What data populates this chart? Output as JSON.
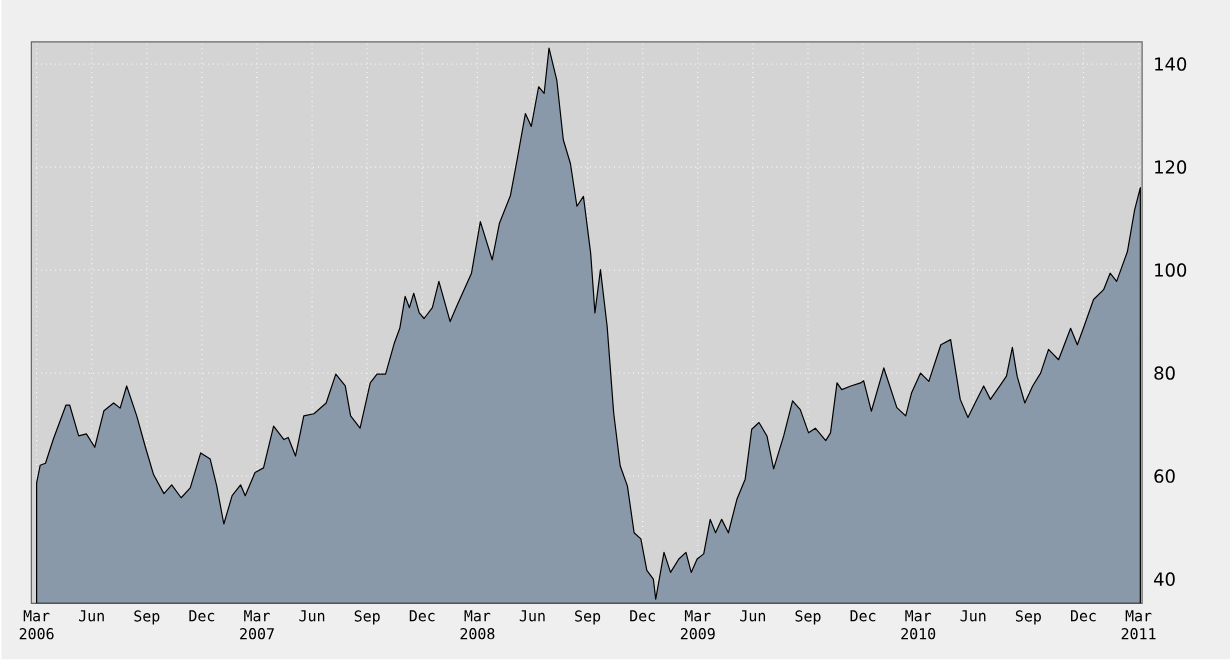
{
  "chart_data": {
    "type": "area",
    "color": "#8a99a9",
    "x": [
      "2006-03-01",
      "2006-03-07",
      "2006-03-16",
      "2006-03-29",
      "2006-04-19",
      "2006-04-25",
      "2006-05-10",
      "2006-05-23",
      "2006-06-06",
      "2006-06-21",
      "2006-07-07",
      "2006-07-18",
      "2006-07-29",
      "2006-08-15",
      "2006-08-29",
      "2006-09-12",
      "2006-09-29",
      "2006-10-12",
      "2006-10-28",
      "2006-11-12",
      "2006-11-29",
      "2006-12-15",
      "2006-12-26",
      "2007-01-07",
      "2007-01-21",
      "2007-02-04",
      "2007-02-11",
      "2007-02-26",
      "2007-03-12",
      "2007-03-29",
      "2007-04-15",
      "2007-04-22",
      "2007-05-04",
      "2007-05-18",
      "2007-06-04",
      "2007-06-24",
      "2007-07-10",
      "2007-07-26",
      "2007-08-04",
      "2007-08-20",
      "2007-09-06",
      "2007-09-17",
      "2007-10-01",
      "2007-10-16",
      "2007-10-25",
      "2007-11-03",
      "2007-11-10",
      "2007-11-17",
      "2007-11-26",
      "2007-12-04",
      "2007-12-18",
      "2007-12-29",
      "2008-01-17",
      "2008-01-28",
      "2008-02-20",
      "2008-03-06",
      "2008-03-26",
      "2008-04-07",
      "2008-04-25",
      "2008-05-06",
      "2008-05-20",
      "2008-05-30",
      "2008-06-11",
      "2008-06-20",
      "2008-06-28",
      "2008-07-11",
      "2008-07-22",
      "2008-08-03",
      "2008-08-14",
      "2008-08-25",
      "2008-09-06",
      "2008-09-13",
      "2008-09-22",
      "2008-10-03",
      "2008-10-14",
      "2008-10-25",
      "2008-11-06",
      "2008-11-17",
      "2008-11-28",
      "2008-12-08",
      "2008-12-19",
      "2008-12-23",
      "2009-01-06",
      "2009-01-17",
      "2009-01-31",
      "2009-02-11",
      "2009-02-19",
      "2009-02-28",
      "2009-03-11",
      "2009-03-22",
      "2009-03-31",
      "2009-04-10",
      "2009-04-21",
      "2009-05-05",
      "2009-05-19",
      "2009-05-30",
      "2009-06-11",
      "2009-06-24",
      "2009-07-05",
      "2009-07-22",
      "2009-08-06",
      "2009-08-19",
      "2009-09-02",
      "2009-09-13",
      "2009-09-30",
      "2009-10-08",
      "2009-10-19",
      "2009-10-27",
      "2009-11-11",
      "2009-11-27",
      "2009-12-02",
      "2009-12-15",
      "2010-01-05",
      "2010-01-27",
      "2010-02-10",
      "2010-02-19",
      "2010-03-05",
      "2010-03-19",
      "2010-04-08",
      "2010-04-24",
      "2010-05-10",
      "2010-05-23",
      "2010-06-04",
      "2010-06-18",
      "2010-06-29",
      "2010-07-16",
      "2010-07-26",
      "2010-08-05",
      "2010-08-13",
      "2010-08-26",
      "2010-09-08",
      "2010-09-21",
      "2010-10-04",
      "2010-10-21",
      "2010-11-10",
      "2010-11-21",
      "2010-12-02",
      "2010-12-18",
      "2011-01-04",
      "2011-01-15",
      "2011-01-26",
      "2011-02-12",
      "2011-02-23",
      "2011-03-04"
    ],
    "values": [
      58.7,
      62.1,
      62.5,
      67.1,
      73.8,
      73.8,
      67.8,
      68.2,
      65.6,
      72.7,
      74.2,
      73.2,
      77.5,
      71.7,
      65.9,
      60.3,
      56.6,
      58.3,
      55.8,
      57.7,
      64.5,
      63.3,
      58.1,
      50.7,
      56.2,
      58.3,
      56.2,
      60.7,
      61.6,
      69.7,
      67.1,
      67.5,
      63.9,
      71.7,
      72.1,
      74.2,
      79.8,
      77.5,
      71.7,
      69.3,
      78.1,
      79.8,
      79.8,
      85.9,
      88.7,
      94.9,
      92.7,
      95.5,
      91.7,
      90.6,
      92.7,
      97.8,
      90.0,
      93.0,
      99.4,
      109.4,
      102.0,
      109.1,
      114.5,
      121.4,
      130.4,
      127.9,
      135.6,
      134.3,
      143.1,
      136.9,
      125.3,
      120.7,
      112.4,
      114.3,
      103.3,
      91.7,
      100.1,
      89.1,
      72.3,
      62.0,
      58.1,
      49.0,
      47.8,
      41.7,
      40.0,
      36.1,
      45.2,
      41.3,
      43.9,
      45.2,
      41.3,
      43.9,
      44.9,
      51.6,
      49.0,
      51.6,
      49.0,
      55.5,
      59.4,
      69.1,
      70.4,
      67.8,
      61.4,
      67.8,
      74.6,
      72.9,
      68.4,
      69.3,
      66.9,
      68.4,
      78.1,
      76.8,
      77.5,
      78.1,
      78.5,
      72.6,
      81.0,
      73.3,
      71.7,
      76.2,
      80.0,
      78.4,
      85.5,
      86.5,
      74.9,
      71.4,
      74.2,
      77.5,
      74.9,
      77.7,
      79.4,
      85.0,
      79.4,
      74.2,
      77.5,
      80.0,
      84.6,
      82.6,
      88.7,
      85.5,
      89.1,
      94.3,
      96.2,
      99.4,
      97.8,
      103.6,
      111.7,
      116.0
    ],
    "xlim": [
      "2006-02-21",
      "2011-03-07"
    ],
    "xticks": [
      {
        "value": "2006-03",
        "label": "Mar 2006"
      },
      {
        "value": "2006-06",
        "label": "Jun"
      },
      {
        "value": "2006-09",
        "label": "Sep"
      },
      {
        "value": "2006-12",
        "label": "Dec"
      },
      {
        "value": "2007-03",
        "label": "Mar 2007"
      },
      {
        "value": "2007-06",
        "label": "Jun"
      },
      {
        "value": "2007-09",
        "label": "Sep"
      },
      {
        "value": "2007-12",
        "label": "Dec"
      },
      {
        "value": "2008-03",
        "label": "Mar 2008"
      },
      {
        "value": "2008-06",
        "label": "Jun"
      },
      {
        "value": "2008-09",
        "label": "Sep"
      },
      {
        "value": "2008-12",
        "label": "Dec"
      },
      {
        "value": "2009-03",
        "label": "Mar 2009"
      },
      {
        "value": "2009-06",
        "label": "Jun"
      },
      {
        "value": "2009-09",
        "label": "Sep"
      },
      {
        "value": "2009-12",
        "label": "Dec"
      },
      {
        "value": "2010-03",
        "label": "Mar 2010"
      },
      {
        "value": "2010-06",
        "label": "Jun"
      },
      {
        "value": "2010-09",
        "label": "Sep"
      },
      {
        "value": "2010-12",
        "label": "Dec"
      },
      {
        "value": "2011-03",
        "label": "Mar 2011"
      }
    ],
    "ylim": [
      35.3,
      144.3
    ],
    "yticks": [
      40,
      60,
      80,
      100,
      120,
      140
    ],
    "grid": true
  }
}
